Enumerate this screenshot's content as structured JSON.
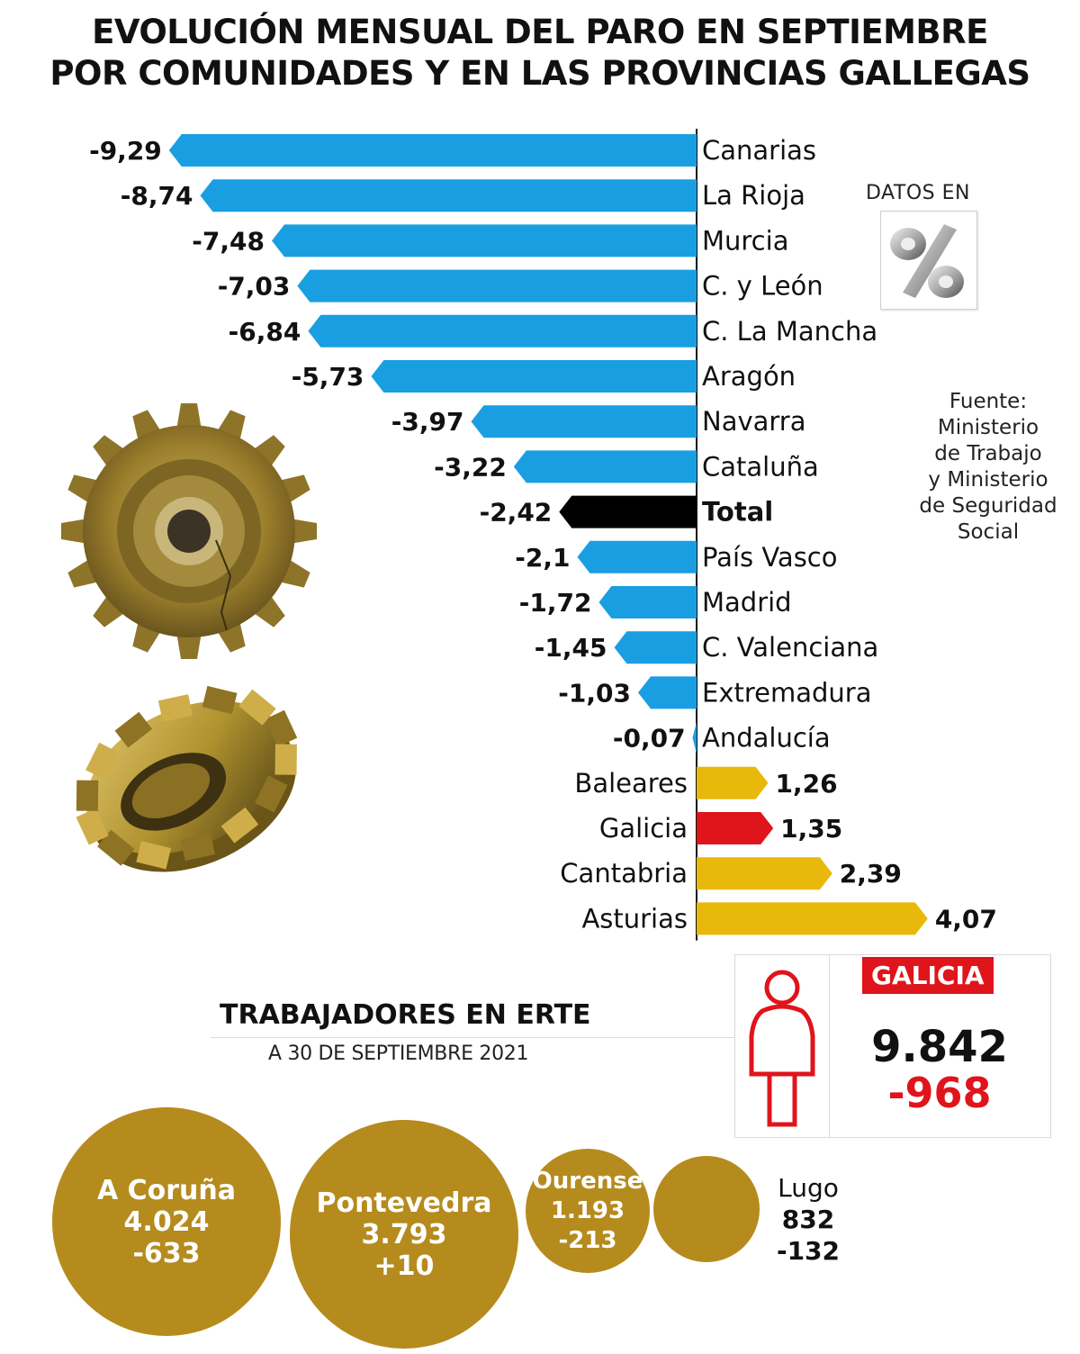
{
  "title_line1": "EVOLUCIÓN MENSUAL DEL PARO EN SEPTIEMBRE",
  "title_line2": "POR COMUNIDADES Y EN LAS PROVINCIAS GALLEGAS",
  "datos_en": "DATOS EN",
  "percent_icon": "percent-sign-icon",
  "source": [
    "Fuente:",
    "Ministerio",
    "de Trabajo",
    "y Ministerio",
    "de Seguridad",
    "Social"
  ],
  "colors": {
    "negative": "#1a9ee2",
    "total": "#000000",
    "positive": "#e8b90a",
    "galicia": "#e0141b",
    "bubble": "#b58b1e"
  },
  "chart_data": {
    "type": "bar",
    "orientation": "horizontal",
    "unit": "%",
    "categories": [
      "Canarias",
      "La Rioja",
      "Murcia",
      "C. y León",
      "C. La Mancha",
      "Aragón",
      "Navarra",
      "Cataluña",
      "Total",
      "País Vasco",
      "Madrid",
      "C. Valenciana",
      "Extremadura",
      "Andalucía",
      "Baleares",
      "Galicia",
      "Cantabria",
      "Asturias"
    ],
    "values": [
      -9.29,
      -8.74,
      -7.48,
      -7.03,
      -6.84,
      -5.73,
      -3.97,
      -3.22,
      -2.42,
      -2.1,
      -1.72,
      -1.45,
      -1.03,
      -0.07,
      1.26,
      1.35,
      2.39,
      4.07
    ],
    "value_labels": [
      "-9,29",
      "-8,74",
      "-7,48",
      "-7,03",
      "-6,84",
      "-5,73",
      "-3,97",
      "-3,22",
      "-2,42",
      "-2,1",
      "-1,72",
      "-1,45",
      "-1,03",
      "-0,07",
      "1,26",
      "1,35",
      "2,39",
      "4,07"
    ],
    "highlight": {
      "Total": "total",
      "Galicia": "galicia"
    }
  },
  "erte": {
    "title": "TRABAJADORES EN ERTE",
    "subtitle": "A 30 DE SEPTIEMBRE 2021",
    "galicia": {
      "label": "GALICIA",
      "value": "9.842",
      "change": "-968"
    },
    "provinces": [
      {
        "name": "A Coruña",
        "value": "4.024",
        "change": "-633",
        "workers": 4024
      },
      {
        "name": "Pontevedra",
        "value": "3.793",
        "change": "+10",
        "workers": 3793
      },
      {
        "name": "Ourense",
        "value": "1.193",
        "change": "-213",
        "workers": 1193
      },
      {
        "name": "Lugo",
        "value": "832",
        "change": "-132",
        "workers": 832
      }
    ]
  }
}
